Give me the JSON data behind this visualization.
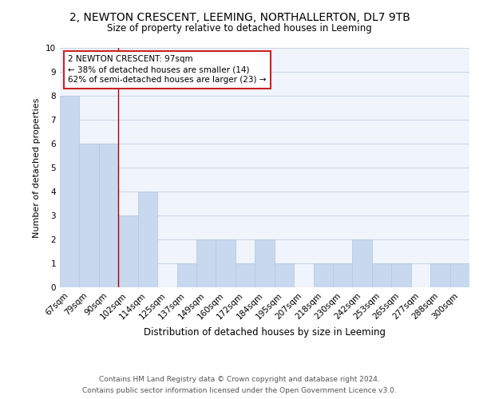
{
  "title1": "2, NEWTON CRESCENT, LEEMING, NORTHALLERTON, DL7 9TB",
  "title2": "Size of property relative to detached houses in Leeming",
  "xlabel": "Distribution of detached houses by size in Leeming",
  "ylabel": "Number of detached properties",
  "categories": [
    "67sqm",
    "79sqm",
    "90sqm",
    "102sqm",
    "114sqm",
    "125sqm",
    "137sqm",
    "149sqm",
    "160sqm",
    "172sqm",
    "184sqm",
    "195sqm",
    "207sqm",
    "218sqm",
    "230sqm",
    "242sqm",
    "253sqm",
    "265sqm",
    "277sqm",
    "288sqm",
    "300sqm"
  ],
  "values": [
    8,
    6,
    6,
    3,
    4,
    0,
    1,
    2,
    2,
    1,
    2,
    1,
    0,
    1,
    1,
    2,
    1,
    1,
    0,
    1,
    1
  ],
  "bar_color": "#c8d8ee",
  "bar_edge_color": "#b0c8de",
  "ref_line_color": "#aa0000",
  "annotation_line1": "2 NEWTON CRESCENT: 97sqm",
  "annotation_line2": "← 38% of detached houses are smaller (14)",
  "annotation_line3": "62% of semi-detached houses are larger (23) →",
  "annotation_box_edge_color": "#cc2222",
  "ylim": [
    0,
    10
  ],
  "yticks": [
    0,
    1,
    2,
    3,
    4,
    5,
    6,
    7,
    8,
    9,
    10
  ],
  "grid_color": "#c8d4e8",
  "plot_bg_color": "#f0f4fc",
  "footer_line1": "Contains HM Land Registry data © Crown copyright and database right 2024.",
  "footer_line2": "Contains public sector information licensed under the Open Government Licence v3.0.",
  "title1_fontsize": 10,
  "title2_fontsize": 8.5,
  "tick_fontsize": 7.5,
  "ylabel_fontsize": 8,
  "xlabel_fontsize": 8.5,
  "annotation_fontsize": 7.5,
  "footer_fontsize": 6.5
}
